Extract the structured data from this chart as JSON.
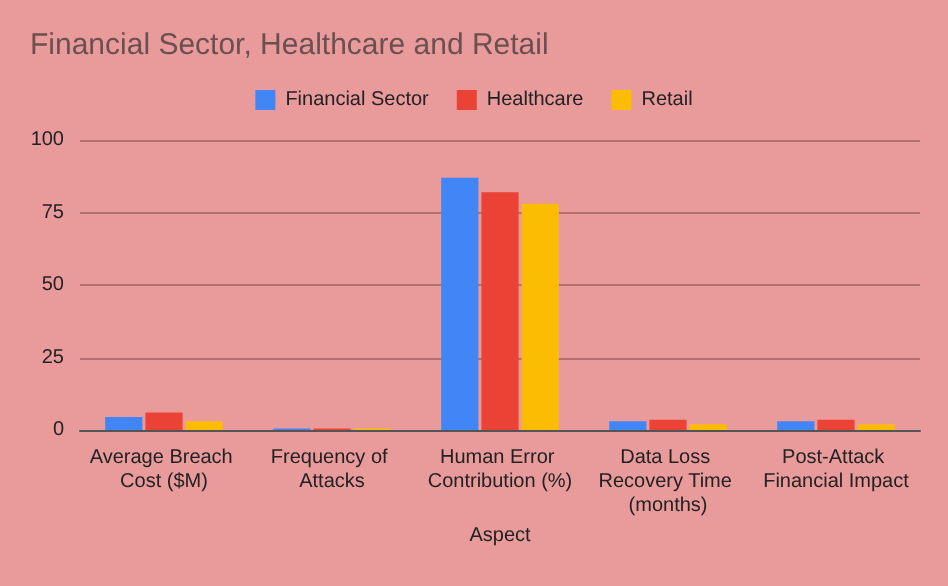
{
  "chart_data": {
    "type": "bar",
    "title": "Financial Sector, Healthcare and Retail",
    "xlabel": "Aspect",
    "categories": [
      "Average Breach Cost ($M)",
      "Frequency of Attacks",
      "Human Error Contribution (%)",
      "Data Loss Recovery Time (months)",
      "Post-Attack Financial Impact"
    ],
    "series": [
      {
        "name": "Financial Sector",
        "color": "#4285f4",
        "values": [
          4.5,
          0.5,
          87,
          3,
          3
        ]
      },
      {
        "name": "Healthcare",
        "color": "#ea4335",
        "values": [
          6,
          0.5,
          82,
          3.5,
          3.5
        ]
      },
      {
        "name": "Retail",
        "color": "#fbbc04",
        "values": [
          3,
          0.5,
          78,
          2,
          2
        ]
      }
    ],
    "ylim": [
      0,
      100
    ],
    "yticks": [
      0,
      25,
      50,
      75,
      100
    ],
    "grid": "y",
    "legend": "top"
  }
}
